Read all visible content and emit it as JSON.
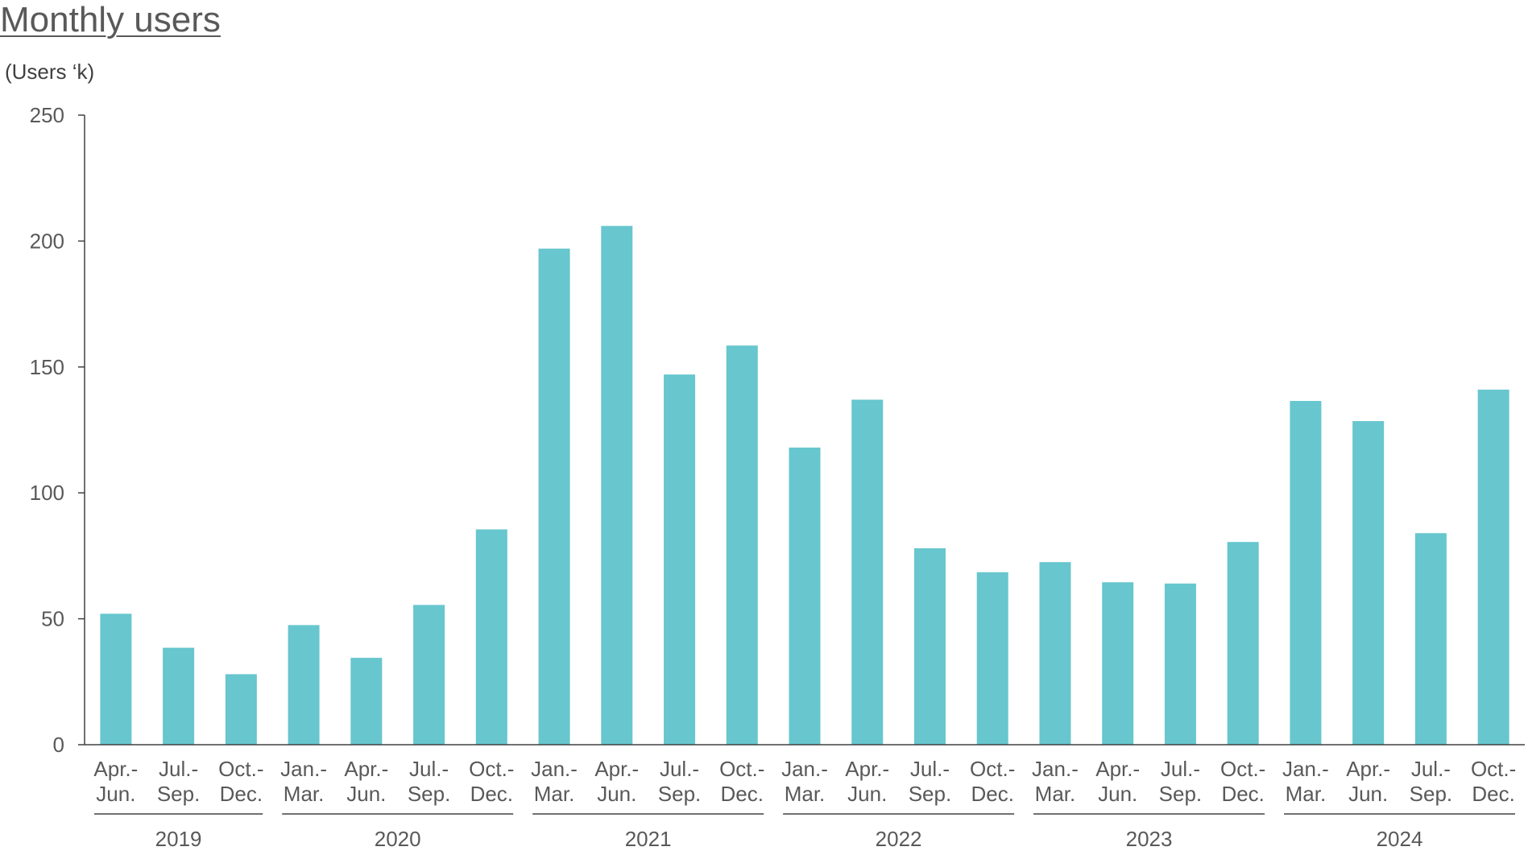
{
  "title": "Monthly users",
  "unit_label": "(Users ‘k)",
  "colors": {
    "bar": "#67C6CE",
    "axis": "#404040",
    "text": "#595959"
  },
  "chart_data": {
    "type": "bar",
    "title": "Monthly users",
    "ylabel": "(Users ‘k)",
    "xlabel": "",
    "ylim": [
      0,
      250
    ],
    "yticks": [
      0,
      50,
      100,
      150,
      200,
      250
    ],
    "grid": false,
    "legend": "none",
    "categories": [
      [
        "Apr.-",
        "Jun."
      ],
      [
        "Jul.-",
        "Sep."
      ],
      [
        "Oct.-",
        "Dec."
      ],
      [
        "Jan.-",
        "Mar."
      ],
      [
        "Apr.-",
        "Jun."
      ],
      [
        "Jul.-",
        "Sep."
      ],
      [
        "Oct.-",
        "Dec."
      ],
      [
        "Jan.-",
        "Mar."
      ],
      [
        "Apr.-",
        "Jun."
      ],
      [
        "Jul.-",
        "Sep."
      ],
      [
        "Oct.-",
        "Dec."
      ],
      [
        "Jan.-",
        "Mar."
      ],
      [
        "Apr.-",
        "Jun."
      ],
      [
        "Jul.-",
        "Sep."
      ],
      [
        "Oct.-",
        "Dec."
      ],
      [
        "Jan.-",
        "Mar."
      ],
      [
        "Apr.-",
        "Jun."
      ],
      [
        "Jul.-",
        "Sep."
      ],
      [
        "Oct.-",
        "Dec."
      ],
      [
        "Jan.-",
        "Mar."
      ],
      [
        "Apr.-",
        "Jun."
      ],
      [
        "Jul.-",
        "Sep."
      ],
      [
        "Oct.-",
        "Dec."
      ]
    ],
    "groups": [
      {
        "label": "2019",
        "start": 0,
        "end": 2
      },
      {
        "label": "2020",
        "start": 3,
        "end": 6
      },
      {
        "label": "2021",
        "start": 7,
        "end": 10
      },
      {
        "label": "2022",
        "start": 11,
        "end": 14
      },
      {
        "label": "2023",
        "start": 15,
        "end": 18
      },
      {
        "label": "2024",
        "start": 19,
        "end": 22
      }
    ],
    "values": [
      52,
      38.5,
      28,
      47.5,
      34.5,
      55.5,
      85.5,
      197,
      206,
      147,
      158.5,
      118,
      137,
      78,
      68.5,
      72.5,
      64.5,
      64,
      80.5,
      136.5,
      128.5,
      84,
      141
    ]
  }
}
